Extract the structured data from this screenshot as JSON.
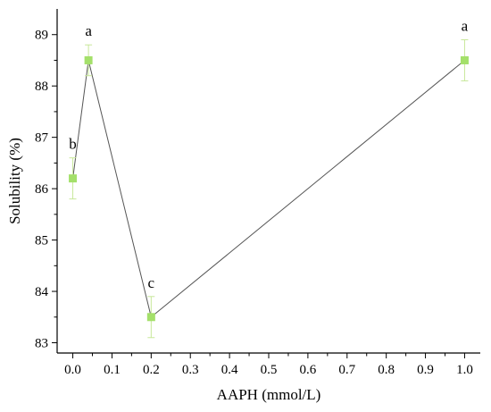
{
  "chart_data": {
    "type": "line",
    "xlabel": "AAPH (mmol/L)",
    "ylabel": "Solubility (%)",
    "xlim": [
      -0.04,
      1.04
    ],
    "ylim": [
      82.8,
      89.5
    ],
    "x_ticks": [
      0.0,
      0.1,
      0.2,
      0.3,
      0.4,
      0.5,
      0.6,
      0.7,
      0.8,
      0.9,
      1.0
    ],
    "x_tick_labels": [
      "0.0",
      "0.1",
      "0.2",
      "0.3",
      "0.4",
      "0.5",
      "0.6",
      "0.7",
      "0.8",
      "0.9",
      "1.0"
    ],
    "y_ticks": [
      83,
      84,
      85,
      86,
      87,
      88,
      89
    ],
    "y_tick_labels": [
      "83",
      "84",
      "85",
      "86",
      "87",
      "88",
      "89"
    ],
    "grid": false,
    "series": [
      {
        "x": [
          0.0,
          0.04,
          0.2,
          1.0
        ],
        "y": [
          86.2,
          88.5,
          83.5,
          88.5
        ],
        "error": [
          0.4,
          0.3,
          0.4,
          0.4
        ],
        "labels": [
          "b",
          "a",
          "c",
          "a"
        ]
      }
    ],
    "colors": {
      "marker": "#a4e06a",
      "error_bar": "#c8e89a",
      "line": "#555555"
    }
  }
}
